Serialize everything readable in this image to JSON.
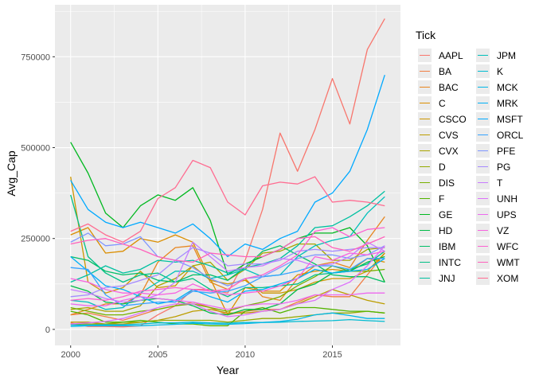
{
  "chart_data": {
    "type": "line",
    "title": "",
    "xlabel": "Year",
    "ylabel": "Avg_Cap",
    "xlim": [
      1999.1,
      2018.9
    ],
    "ylim": [
      -44000,
      893000
    ],
    "x": [
      2000,
      2001,
      2002,
      2003,
      2004,
      2005,
      2006,
      2007,
      2008,
      2009,
      2010,
      2011,
      2012,
      2013,
      2014,
      2015,
      2016,
      2017,
      2018
    ],
    "x_ticks": [
      2000,
      2005,
      2010,
      2015
    ],
    "x_tick_labels": [
      "2000",
      "2005",
      "2010",
      "2015"
    ],
    "y_ticks": [
      0,
      250000,
      500000,
      750000
    ],
    "y_tick_labels": [
      "0",
      "250000",
      "500000",
      "750000"
    ],
    "grid": true,
    "legend": {
      "title": "Tick",
      "position": "right",
      "columns": 2
    },
    "series": [
      {
        "name": "AAPL",
        "color": "#F8766D",
        "values": [
          18000,
          8000,
          8000,
          7000,
          10000,
          40000,
          65000,
          110000,
          110000,
          100000,
          190000,
          330000,
          540000,
          435000,
          550000,
          690000,
          565000,
          770000,
          855000
        ]
      },
      {
        "name": "BA",
        "color": "#F17E44",
        "values": [
          40000,
          45000,
          35000,
          25000,
          40000,
          55000,
          65000,
          75000,
          60000,
          40000,
          50000,
          55000,
          55000,
          75000,
          95000,
          90000,
          90000,
          150000,
          210000
        ]
      },
      {
        "name": "BAC",
        "color": "#E7851E",
        "values": [
          40000,
          55000,
          70000,
          70000,
          95000,
          185000,
          225000,
          230000,
          130000,
          110000,
          140000,
          90000,
          80000,
          140000,
          175000,
          185000,
          170000,
          245000,
          310000
        ]
      },
      {
        "name": "C",
        "color": "#DB8E00",
        "values": [
          260000,
          280000,
          210000,
          215000,
          250000,
          240000,
          260000,
          240000,
          140000,
          40000,
          115000,
          105000,
          105000,
          150000,
          160000,
          165000,
          160000,
          195000,
          185000
        ]
      },
      {
        "name": "CSCO",
        "color": "#CD9600",
        "values": [
          420000,
          130000,
          100000,
          115000,
          160000,
          115000,
          120000,
          175000,
          135000,
          125000,
          135000,
          100000,
          100000,
          110000,
          130000,
          140000,
          140000,
          160000,
          210000
        ]
      },
      {
        "name": "CVS",
        "color": "#BC9D00",
        "values": [
          20000,
          20000,
          15000,
          15000,
          20000,
          25000,
          35000,
          50000,
          55000,
          45000,
          45000,
          50000,
          55000,
          70000,
          90000,
          110000,
          95000,
          80000,
          70000
        ]
      },
      {
        "name": "CVX",
        "color": "#A9A400",
        "values": [
          55000,
          60000,
          50000,
          50000,
          65000,
          120000,
          140000,
          175000,
          185000,
          135000,
          165000,
          210000,
          215000,
          235000,
          235000,
          190000,
          190000,
          220000,
          225000
        ]
      },
      {
        "name": "D",
        "color": "#93AA00",
        "values": [
          15000,
          15000,
          15000,
          20000,
          20000,
          25000,
          25000,
          25000,
          25000,
          20000,
          25000,
          30000,
          30000,
          35000,
          40000,
          45000,
          45000,
          50000,
          45000
        ]
      },
      {
        "name": "DIS",
        "color": "#78B000",
        "values": [
          60000,
          50000,
          40000,
          40000,
          50000,
          55000,
          65000,
          70000,
          60000,
          50000,
          65000,
          75000,
          90000,
          120000,
          145000,
          175000,
          160000,
          160000,
          165000
        ]
      },
      {
        "name": "F",
        "color": "#53B400",
        "values": [
          50000,
          40000,
          20000,
          20000,
          25000,
          20000,
          15000,
          15000,
          10000,
          10000,
          50000,
          60000,
          45000,
          60000,
          60000,
          55000,
          50000,
          50000,
          45000
        ]
      },
      {
        "name": "GE",
        "color": "#00B81F",
        "values": [
          515000,
          430000,
          320000,
          280000,
          340000,
          370000,
          355000,
          390000,
          300000,
          150000,
          180000,
          200000,
          220000,
          250000,
          265000,
          265000,
          280000,
          230000,
          130000
        ]
      },
      {
        "name": "HD",
        "color": "#00BB48",
        "values": [
          120000,
          105000,
          75000,
          70000,
          80000,
          85000,
          80000,
          65000,
          45000,
          40000,
          55000,
          55000,
          70000,
          110000,
          125000,
          155000,
          160000,
          185000,
          200000
        ]
      },
      {
        "name": "IBM",
        "color": "#00BE67",
        "values": [
          200000,
          190000,
          160000,
          150000,
          155000,
          135000,
          130000,
          150000,
          150000,
          135000,
          170000,
          215000,
          230000,
          205000,
          180000,
          150000,
          145000,
          145000,
          130000
        ]
      },
      {
        "name": "INTC",
        "color": "#00C085",
        "values": [
          370000,
          200000,
          155000,
          130000,
          150000,
          155000,
          130000,
          140000,
          110000,
          90000,
          115000,
          115000,
          120000,
          125000,
          150000,
          155000,
          165000,
          180000,
          215000
        ]
      },
      {
        "name": "JNJ",
        "color": "#00C0A1",
        "values": [
          130000,
          150000,
          175000,
          155000,
          165000,
          190000,
          185000,
          190000,
          175000,
          155000,
          170000,
          180000,
          195000,
          230000,
          280000,
          285000,
          310000,
          340000,
          380000
        ]
      },
      {
        "name": "JPM",
        "color": "#00BFBA",
        "values": [
          80000,
          75000,
          55000,
          60000,
          100000,
          130000,
          160000,
          160000,
          140000,
          150000,
          165000,
          145000,
          150000,
          200000,
          230000,
          245000,
          255000,
          320000,
          365000
        ]
      },
      {
        "name": "K",
        "color": "#00BCD2",
        "values": [
          12000,
          12000,
          13000,
          13000,
          15000,
          18000,
          18000,
          20000,
          18000,
          17000,
          19000,
          19000,
          20000,
          22000,
          23000,
          24000,
          27000,
          24000,
          22000
        ]
      },
      {
        "name": "MCK",
        "color": "#00B7E7",
        "values": [
          8000,
          10000,
          10000,
          10000,
          10000,
          12000,
          14000,
          17000,
          15000,
          14000,
          16000,
          19000,
          22000,
          28000,
          40000,
          45000,
          38000,
          30000,
          30000
        ]
      },
      {
        "name": "MRK",
        "color": "#00B0F6",
        "values": [
          200000,
          160000,
          120000,
          110000,
          90000,
          70000,
          80000,
          110000,
          90000,
          75000,
          105000,
          110000,
          125000,
          140000,
          165000,
          155000,
          160000,
          165000,
          195000
        ]
      },
      {
        "name": "MSFT",
        "color": "#00A9FF",
        "values": [
          410000,
          330000,
          295000,
          280000,
          295000,
          280000,
          265000,
          290000,
          250000,
          200000,
          235000,
          220000,
          250000,
          270000,
          350000,
          375000,
          435000,
          550000,
          700000
        ]
      },
      {
        "name": "ORCL",
        "color": "#35A2FF",
        "values": [
          170000,
          165000,
          95000,
          65000,
          70000,
          75000,
          75000,
          105000,
          100000,
          105000,
          120000,
          145000,
          150000,
          160000,
          175000,
          175000,
          165000,
          195000,
          195000
        ]
      },
      {
        "name": "PFE",
        "color": "#7F96FF",
        "values": [
          240000,
          265000,
          230000,
          235000,
          255000,
          200000,
          190000,
          170000,
          140000,
          120000,
          140000,
          145000,
          170000,
          195000,
          205000,
          205000,
          195000,
          205000,
          230000
        ]
      },
      {
        "name": "PG",
        "color": "#A58AFF",
        "values": [
          90000,
          95000,
          115000,
          120000,
          135000,
          150000,
          190000,
          225000,
          210000,
          175000,
          180000,
          180000,
          190000,
          215000,
          220000,
          215000,
          220000,
          225000,
          225000
        ]
      },
      {
        "name": "T",
        "color": "#C77CFF",
        "values": [
          110000,
          100000,
          85000,
          75000,
          80000,
          95000,
          130000,
          240000,
          200000,
          160000,
          170000,
          175000,
          195000,
          190000,
          175000,
          180000,
          200000,
          240000,
          215000
        ]
      },
      {
        "name": "UNH",
        "color": "#DC71FA",
        "values": [
          15000,
          18000,
          22000,
          30000,
          45000,
          60000,
          70000,
          70000,
          50000,
          35000,
          40000,
          50000,
          55000,
          70000,
          80000,
          110000,
          130000,
          175000,
          230000
        ]
      },
      {
        "name": "UPS",
        "color": "#EC69EF",
        "values": [
          70000,
          65000,
          65000,
          80000,
          90000,
          85000,
          80000,
          75000,
          65000,
          55000,
          65000,
          70000,
          70000,
          80000,
          95000,
          95000,
          95000,
          100000,
          100000
        ]
      },
      {
        "name": "VZ",
        "color": "#F763E0",
        "values": [
          140000,
          130000,
          110000,
          100000,
          100000,
          95000,
          100000,
          125000,
          105000,
          95000,
          100000,
          105000,
          120000,
          140000,
          200000,
          190000,
          210000,
          205000,
          215000
        ]
      },
      {
        "name": "WFC",
        "color": "#FD61D1",
        "values": [
          80000,
          85000,
          80000,
          90000,
          105000,
          110000,
          115000,
          110000,
          105000,
          110000,
          140000,
          150000,
          175000,
          205000,
          270000,
          280000,
          255000,
          275000,
          280000
        ]
      },
      {
        "name": "WMT",
        "color": "#FF62BC",
        "values": [
          235000,
          245000,
          250000,
          235000,
          220000,
          200000,
          190000,
          185000,
          210000,
          205000,
          200000,
          200000,
          220000,
          250000,
          255000,
          225000,
          215000,
          235000,
          255000
        ]
      },
      {
        "name": "XOM",
        "color": "#FF6C91",
        "values": [
          270000,
          290000,
          260000,
          240000,
          270000,
          360000,
          390000,
          465000,
          445000,
          350000,
          315000,
          395000,
          405000,
          400000,
          420000,
          350000,
          355000,
          350000,
          340000
        ]
      }
    ]
  }
}
